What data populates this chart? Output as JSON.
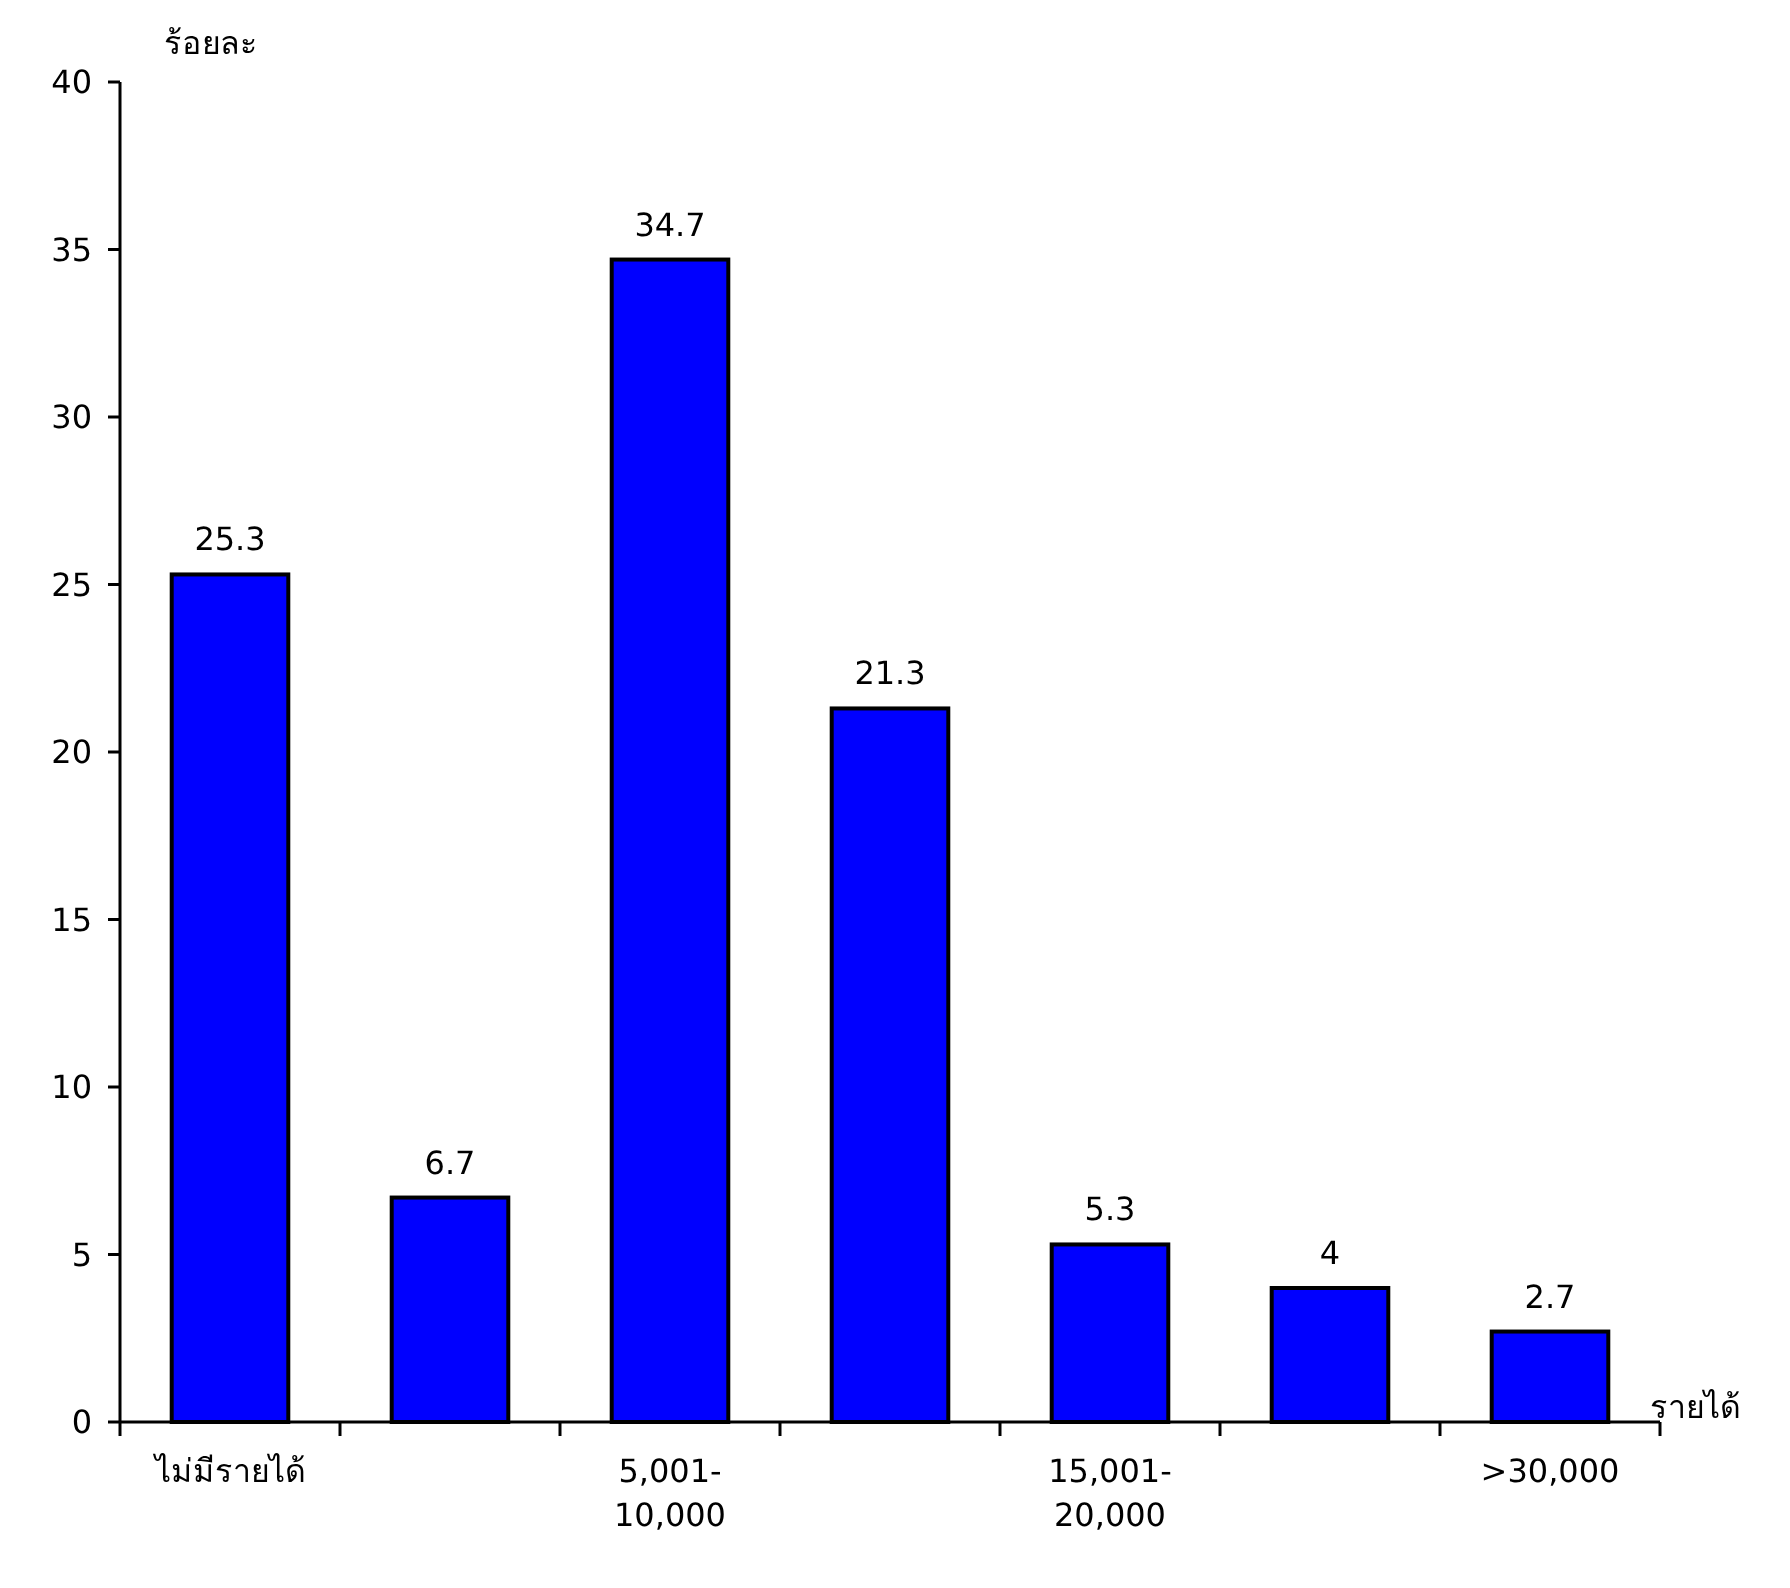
{
  "chart_data": {
    "type": "bar",
    "ylabel": "ร้อยละ",
    "xlabel": "รายได้",
    "categories": [
      "ไม่มีรายได้",
      null,
      "5,001-10,000",
      null,
      "15,001-20,000",
      null,
      ">30,000"
    ],
    "values": [
      25.3,
      6.7,
      34.7,
      21.3,
      5.3,
      4,
      2.7
    ],
    "color": "#0000ff",
    "ylim": [
      0,
      40
    ],
    "yticks": [
      0,
      5,
      10,
      15,
      20,
      25,
      30,
      35,
      40
    ],
    "data_labels": true
  }
}
